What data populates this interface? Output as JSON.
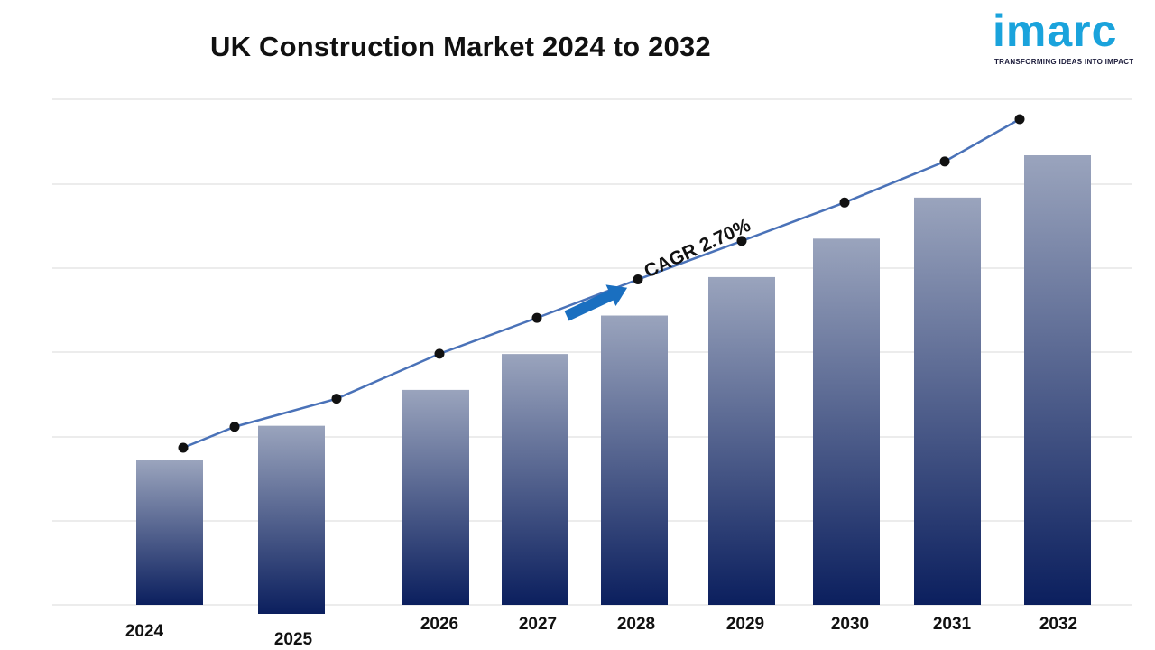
{
  "brand": {
    "logo_text": "imarc",
    "tagline": "TRANSFORMING IDEAS INTO IMPACT",
    "logo_color": "#1aa3dc"
  },
  "chart_data": {
    "type": "bar",
    "title": "UK Construction Market 2024 to 2032",
    "categories": [
      "2024",
      "2025",
      "2026",
      "2027",
      "2028",
      "2029",
      "2030",
      "2031",
      "2032"
    ],
    "series": [
      {
        "values": [
          100,
          102.7,
          105.5,
          108.3,
          111.3,
          114.3,
          117.3,
          120.5,
          123.8
        ]
      }
    ],
    "trend_line": [
      100,
      102.7,
      105.5,
      108.3,
      111.3,
      114.3,
      117.3,
      120.5,
      123.8
    ],
    "annotation": "CAGR 2.70%",
    "xlabel": "",
    "ylabel": "",
    "grid": true,
    "legend": "none",
    "colors": {
      "bar_top": "#9aa4bd",
      "bar_bottom": "#0b1f5e",
      "line": "#4a72b8",
      "marker": "#111111",
      "arrow": "#1a6fc0",
      "grid": "#d9d9d9"
    }
  }
}
